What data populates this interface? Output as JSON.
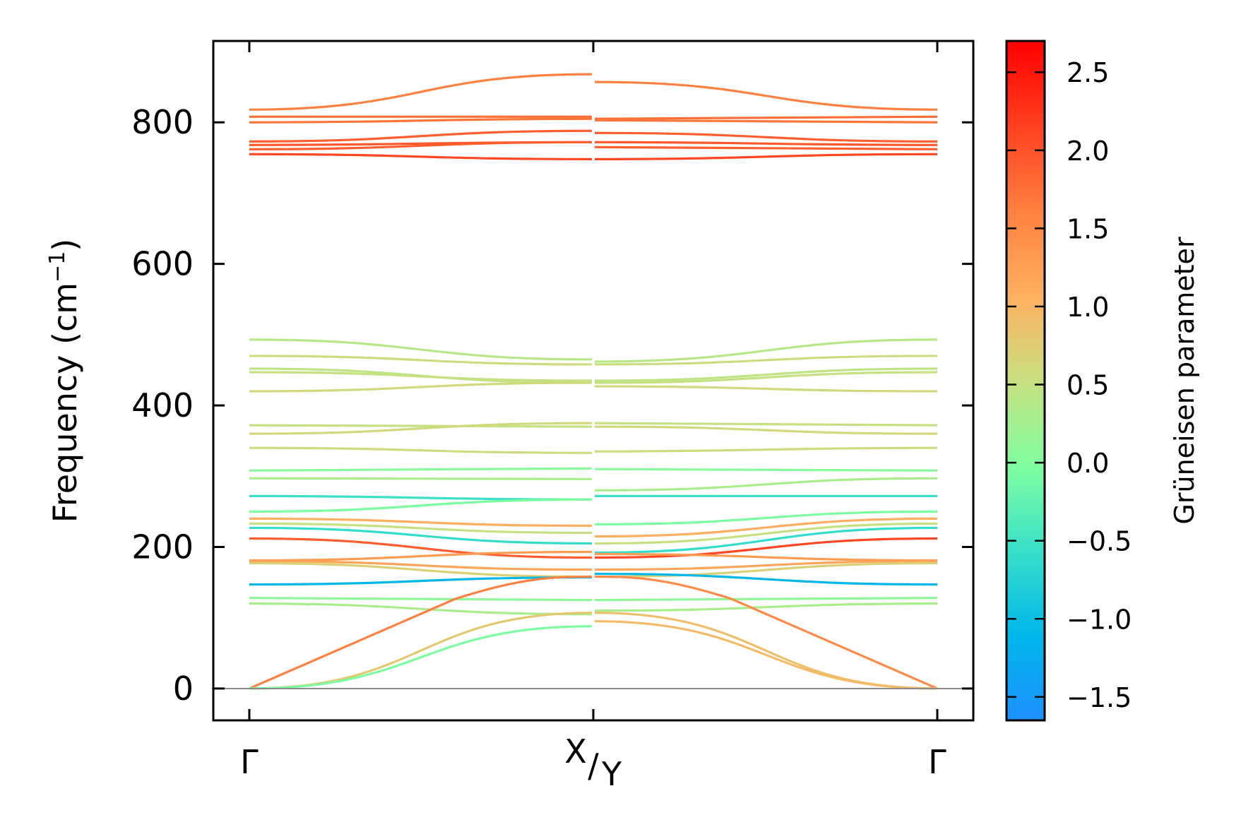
{
  "chart_data": {
    "type": "line",
    "title": "",
    "ylabel": "Frequency (cm⁻¹)",
    "ylabel_main": "Frequency (cm",
    "ylabel_sup": "−1",
    "ylabel_end": ")",
    "ylim": [
      -45,
      915
    ],
    "yticks": [
      0,
      200,
      400,
      600,
      800
    ],
    "ytick_labels": [
      "0",
      "200",
      "400",
      "600",
      "800"
    ],
    "xtick_labels": {
      "gamma_left": "Γ",
      "mid_top": "X",
      "mid_slash": "/",
      "mid_bottom": "Y",
      "gamma_right": "Γ"
    },
    "colorbar": {
      "label": "Grüneisen parameter",
      "range": [
        -1.65,
        2.7
      ],
      "ticks": [
        -1.5,
        -1.0,
        -0.5,
        0.0,
        0.5,
        1.0,
        1.5,
        2.0,
        2.5
      ],
      "tick_labels": [
        "−1.5",
        "−1.0",
        "−0.5",
        "0.0",
        "0.5",
        "1.0",
        "1.5",
        "2.0",
        "2.5"
      ],
      "colors": [
        "#1e90ff",
        "#00b7ea",
        "#38e0c8",
        "#80ffa0",
        "#c8e080",
        "#ffb060",
        "#ff8040",
        "#ff4020",
        "#ff0000"
      ]
    },
    "segments": [
      {
        "name": "Gamma-X",
        "bands": [
          {
            "values": [
              818,
              868
            ],
            "gamma": 1.6
          },
          {
            "values": [
              808,
              808
            ],
            "gamma": 1.75
          },
          {
            "values": [
              800,
              805
            ],
            "gamma": 1.7
          },
          {
            "values": [
              773,
              788
            ],
            "gamma": 1.9
          },
          {
            "values": [
              768,
              772
            ],
            "gamma": 1.95
          },
          {
            "values": [
              762,
              772
            ],
            "gamma": 1.9
          },
          {
            "values": [
              755,
              748
            ],
            "gamma": 2.1
          },
          {
            "values": [
              493,
              465
            ],
            "gamma": 0.4
          },
          {
            "values": [
              470,
              458
            ],
            "gamma": 0.55
          },
          {
            "values": [
              452,
              432
            ],
            "gamma": 0.45
          },
          {
            "values": [
              447,
              435
            ],
            "gamma": 0.5
          },
          {
            "values": [
              420,
              432
            ],
            "gamma": 0.6
          },
          {
            "values": [
              372,
              370
            ],
            "gamma": 0.5
          },
          {
            "values": [
              360,
              375
            ],
            "gamma": 0.6
          },
          {
            "values": [
              340,
              333
            ],
            "gamma": 0.55
          },
          {
            "values": [
              308,
              311
            ],
            "gamma": 0.05
          },
          {
            "values": [
              297,
              296
            ],
            "gamma": 0.3
          },
          {
            "values": [
              272,
              267
            ],
            "gamma": -0.55
          },
          {
            "values": [
              250,
              267
            ],
            "gamma": -0.05
          },
          {
            "values": [
              240,
              230
            ],
            "gamma": 1.1
          },
          {
            "values": [
              233,
              220
            ],
            "gamma": 0.5
          },
          {
            "values": [
              227,
              205
            ],
            "gamma": -0.6
          },
          {
            "values": [
              212,
              185
            ],
            "gamma": 1.9
          },
          {
            "values": [
              181,
              193
            ],
            "gamma": 1.3
          },
          {
            "values": [
              180,
              168
            ],
            "gamma": 1.2
          },
          {
            "values": [
              177,
              158
            ],
            "gamma": 0.7
          },
          {
            "values": [
              147,
              157
            ],
            "gamma": -1.1
          },
          {
            "values": [
              128,
              125
            ],
            "gamma": 0.1
          },
          {
            "values": [
              120,
              105
            ],
            "gamma": 0.3
          },
          {
            "values": [
              0,
              158
            ],
            "gamma": 1.6,
            "shape": "acoustic"
          },
          {
            "values": [
              0,
              107
            ],
            "gamma": 0.8
          },
          {
            "values": [
              0,
              88
            ],
            "gamma": -0.05
          }
        ]
      },
      {
        "name": "Y-Gamma",
        "bands": [
          {
            "values": [
              857,
              818
            ],
            "gamma": 1.6
          },
          {
            "values": [
              805,
              808
            ],
            "gamma": 1.75
          },
          {
            "values": [
              803,
              800
            ],
            "gamma": 1.7
          },
          {
            "values": [
              785,
              773
            ],
            "gamma": 1.9
          },
          {
            "values": [
              772,
              768
            ],
            "gamma": 1.95
          },
          {
            "values": [
              765,
              762
            ],
            "gamma": 1.9
          },
          {
            "values": [
              748,
              755
            ],
            "gamma": 2.1
          },
          {
            "values": [
              462,
              493
            ],
            "gamma": 0.4
          },
          {
            "values": [
              458,
              470
            ],
            "gamma": 0.55
          },
          {
            "values": [
              435,
              452
            ],
            "gamma": 0.45
          },
          {
            "values": [
              432,
              447
            ],
            "gamma": 0.5
          },
          {
            "values": [
              427,
              420
            ],
            "gamma": 0.6
          },
          {
            "values": [
              375,
              372
            ],
            "gamma": 0.5
          },
          {
            "values": [
              370,
              360
            ],
            "gamma": 0.6
          },
          {
            "values": [
              335,
              340
            ],
            "gamma": 0.55
          },
          {
            "values": [
              310,
              308
            ],
            "gamma": 0.05
          },
          {
            "values": [
              280,
              297
            ],
            "gamma": 0.3
          },
          {
            "values": [
              272,
              272
            ],
            "gamma": -0.55
          },
          {
            "values": [
              232,
              250
            ],
            "gamma": -0.05
          },
          {
            "values": [
              215,
              240
            ],
            "gamma": 1.1
          },
          {
            "values": [
              205,
              233
            ],
            "gamma": 0.5
          },
          {
            "values": [
              192,
              227
            ],
            "gamma": -0.6
          },
          {
            "values": [
              185,
              212
            ],
            "gamma": 2.1
          },
          {
            "values": [
              190,
              181
            ],
            "gamma": 1.3
          },
          {
            "values": [
              168,
              180
            ],
            "gamma": 1.2
          },
          {
            "values": [
              158,
              177
            ],
            "gamma": 0.7
          },
          {
            "values": [
              162,
              147
            ],
            "gamma": -1.1
          },
          {
            "values": [
              125,
              128
            ],
            "gamma": 0.1
          },
          {
            "values": [
              110,
              120
            ],
            "gamma": 0.3
          },
          {
            "values": [
              158,
              0
            ],
            "gamma": 1.5,
            "shape": "acoustic"
          },
          {
            "values": [
              107,
              0
            ],
            "gamma": 0.9
          },
          {
            "values": [
              95,
              0
            ],
            "gamma": 0.95
          }
        ]
      }
    ]
  }
}
